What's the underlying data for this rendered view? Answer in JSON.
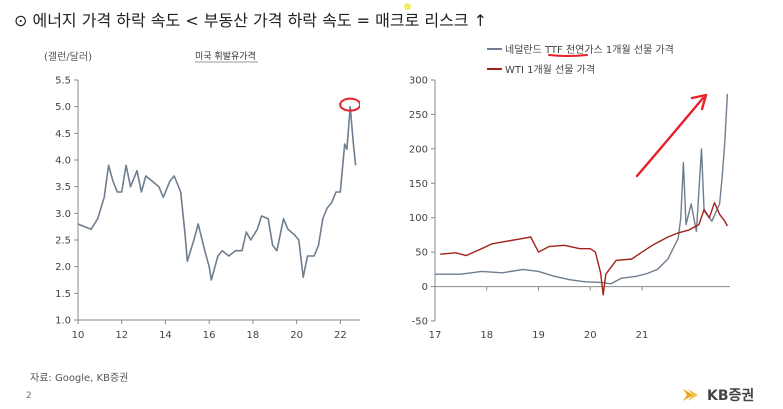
{
  "slide": {
    "title": "⊙ 에너지 가격 하락 속도 < 부동산 가격 하락 속도 = 매크로 리스크 ↑",
    "source": "자료: Google, KB증권",
    "page_number": "2",
    "brand": "KB증권",
    "colors": {
      "accent_yellow": "#f2ec6a",
      "brand_gold": "#e8a41a",
      "annotation_red": "#e8202a"
    }
  },
  "chart_data": [
    {
      "type": "line",
      "title": "미국 휘발유가격",
      "ylabel": "(갤런/달러)",
      "xlabel": "",
      "x_ticks": [
        "10",
        "12",
        "14",
        "16",
        "18",
        "20",
        "22"
      ],
      "y_ticks": [
        "1.0",
        "1.5",
        "2.0",
        "2.5",
        "3.0",
        "3.5",
        "4.0",
        "4.5",
        "5.0",
        "5.5"
      ],
      "xlim": [
        2010,
        2022.9
      ],
      "ylim": [
        1.0,
        5.5
      ],
      "grid": false,
      "series": [
        {
          "name": "미국 휘발유가격",
          "color": "#6e7e8e",
          "points": [
            [
              2010.0,
              2.8
            ],
            [
              2010.3,
              2.75
            ],
            [
              2010.6,
              2.7
            ],
            [
              2010.9,
              2.9
            ],
            [
              2011.2,
              3.3
            ],
            [
              2011.4,
              3.9
            ],
            [
              2011.6,
              3.6
            ],
            [
              2011.8,
              3.4
            ],
            [
              2012.0,
              3.4
            ],
            [
              2012.2,
              3.9
            ],
            [
              2012.4,
              3.5
            ],
            [
              2012.7,
              3.8
            ],
            [
              2012.9,
              3.4
            ],
            [
              2013.1,
              3.7
            ],
            [
              2013.4,
              3.6
            ],
            [
              2013.7,
              3.5
            ],
            [
              2013.9,
              3.3
            ],
            [
              2014.2,
              3.6
            ],
            [
              2014.4,
              3.7
            ],
            [
              2014.7,
              3.4
            ],
            [
              2014.9,
              2.6
            ],
            [
              2015.0,
              2.1
            ],
            [
              2015.3,
              2.5
            ],
            [
              2015.5,
              2.8
            ],
            [
              2015.8,
              2.3
            ],
            [
              2016.0,
              2.0
            ],
            [
              2016.1,
              1.75
            ],
            [
              2016.4,
              2.2
            ],
            [
              2016.6,
              2.3
            ],
            [
              2016.9,
              2.2
            ],
            [
              2017.2,
              2.3
            ],
            [
              2017.5,
              2.3
            ],
            [
              2017.7,
              2.65
            ],
            [
              2017.9,
              2.5
            ],
            [
              2018.2,
              2.7
            ],
            [
              2018.4,
              2.95
            ],
            [
              2018.7,
              2.9
            ],
            [
              2018.9,
              2.4
            ],
            [
              2019.1,
              2.3
            ],
            [
              2019.4,
              2.9
            ],
            [
              2019.6,
              2.7
            ],
            [
              2019.9,
              2.6
            ],
            [
              2020.1,
              2.5
            ],
            [
              2020.3,
              1.8
            ],
            [
              2020.5,
              2.2
            ],
            [
              2020.8,
              2.2
            ],
            [
              2021.0,
              2.4
            ],
            [
              2021.2,
              2.9
            ],
            [
              2021.4,
              3.1
            ],
            [
              2021.6,
              3.2
            ],
            [
              2021.8,
              3.4
            ],
            [
              2022.0,
              3.4
            ],
            [
              2022.2,
              4.3
            ],
            [
              2022.3,
              4.2
            ],
            [
              2022.45,
              5.0
            ],
            [
              2022.6,
              4.3
            ],
            [
              2022.7,
              3.9
            ]
          ]
        }
      ]
    },
    {
      "type": "line",
      "title": "",
      "xlabel": "",
      "ylabel": "",
      "x_ticks": [
        "17",
        "18",
        "19",
        "20",
        "21"
      ],
      "y_ticks": [
        "-50",
        "0",
        "50",
        "100",
        "150",
        "200",
        "250",
        "300"
      ],
      "xlim": [
        2017.0,
        2022.7
      ],
      "ylim": [
        -50,
        300
      ],
      "grid": false,
      "legend": "top",
      "series": [
        {
          "name": "네덜란드 TTF 천연가스 1개월 선물 가격",
          "color": "#6e7e8e",
          "points": [
            [
              2017.0,
              18
            ],
            [
              2017.5,
              18
            ],
            [
              2017.9,
              22
            ],
            [
              2018.3,
              20
            ],
            [
              2018.7,
              25
            ],
            [
              2019.0,
              22
            ],
            [
              2019.3,
              15
            ],
            [
              2019.6,
              10
            ],
            [
              2019.9,
              7
            ],
            [
              2020.2,
              6
            ],
            [
              2020.4,
              4
            ],
            [
              2020.6,
              12
            ],
            [
              2020.9,
              15
            ],
            [
              2021.1,
              19
            ],
            [
              2021.3,
              25
            ],
            [
              2021.5,
              40
            ],
            [
              2021.7,
              70
            ],
            [
              2021.75,
              100
            ],
            [
              2021.8,
              180
            ],
            [
              2021.85,
              90
            ],
            [
              2021.95,
              120
            ],
            [
              2022.05,
              80
            ],
            [
              2022.15,
              200
            ],
            [
              2022.2,
              110
            ],
            [
              2022.35,
              95
            ],
            [
              2022.5,
              120
            ],
            [
              2022.55,
              160
            ],
            [
              2022.6,
              210
            ],
            [
              2022.65,
              280
            ]
          ]
        },
        {
          "name": "WTI 1개월 선물 가격",
          "color": "#a2231a",
          "points": [
            [
              2017.1,
              47
            ],
            [
              2017.4,
              49
            ],
            [
              2017.6,
              45
            ],
            [
              2017.9,
              55
            ],
            [
              2018.1,
              62
            ],
            [
              2018.4,
              66
            ],
            [
              2018.7,
              70
            ],
            [
              2018.85,
              72
            ],
            [
              2019.0,
              50
            ],
            [
              2019.2,
              58
            ],
            [
              2019.5,
              60
            ],
            [
              2019.8,
              55
            ],
            [
              2020.0,
              55
            ],
            [
              2020.1,
              50
            ],
            [
              2020.2,
              20
            ],
            [
              2020.25,
              -12
            ],
            [
              2020.3,
              18
            ],
            [
              2020.5,
              38
            ],
            [
              2020.8,
              40
            ],
            [
              2021.0,
              50
            ],
            [
              2021.2,
              60
            ],
            [
              2021.5,
              72
            ],
            [
              2021.7,
              78
            ],
            [
              2021.9,
              82
            ],
            [
              2022.1,
              90
            ],
            [
              2022.2,
              112
            ],
            [
              2022.3,
              100
            ],
            [
              2022.4,
              122
            ],
            [
              2022.5,
              105
            ],
            [
              2022.6,
              95
            ],
            [
              2022.65,
              88
            ]
          ]
        }
      ]
    }
  ]
}
